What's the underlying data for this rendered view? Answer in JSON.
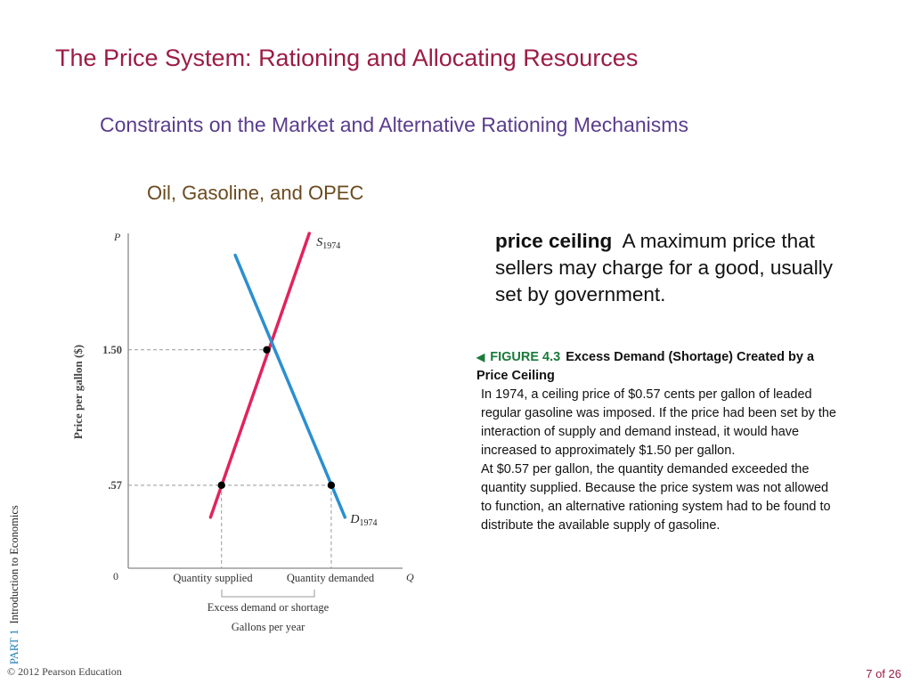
{
  "slide": {
    "title": "The Price System: Rationing and Allocating Resources",
    "subtitle": "Constraints on the Market and Alternative Rationing Mechanisms",
    "section": "Oil, Gasoline, and OPEC",
    "definition": {
      "term": "price ceiling",
      "text": "A maximum price that sellers may charge for a good, usually set by government."
    },
    "figure": {
      "label": "FIGURE 4.3",
      "title": "Excess Demand (Shortage) Created by a Price Ceiling",
      "paragraph1": "In 1974, a ceiling price of $0.57 cents per gallon of leaded regular gasoline was imposed. If the price had been set by the interaction of supply and demand instead, it would have increased to approximately $1.50 per gallon.",
      "paragraph2": "At $0.57 per gallon, the quantity demanded exceeded the quantity supplied. Because the price system was not allowed to function, an alternative rationing system had to be found to distribute the available supply of gasoline."
    },
    "side_label": {
      "part": "PART 1",
      "text": "Introduction to Economics"
    },
    "footer": {
      "copyright": "© 2012 Pearson Education",
      "page": "7 of 26"
    }
  },
  "chart_data": {
    "type": "line",
    "y_axis_label": "Price per gallon ($)",
    "y_axis_symbol": "P",
    "x_axis_symbol": "Q",
    "origin_label": "0",
    "y_ticks": [
      {
        "value": 0.57,
        "label": ".57"
      },
      {
        "value": 1.5,
        "label": "1.50"
      }
    ],
    "x_labels": {
      "quantity_supplied": "Quantity supplied",
      "quantity_demanded": "Quantity demanded",
      "shortage": "Excess demand or shortage",
      "units": "Gallons per year"
    },
    "ylim": [
      0,
      2.3
    ],
    "xlim": [
      0,
      10
    ],
    "series": [
      {
        "name": "S1974",
        "label_main": "S",
        "label_sub": "1974",
        "color": "#e0245e",
        "points": [
          [
            3.0,
            0.35
          ],
          [
            6.6,
            2.3
          ]
        ]
      },
      {
        "name": "D1974",
        "label_main": "D",
        "label_sub": "1974",
        "color": "#2b8fd0",
        "points": [
          [
            3.9,
            2.15
          ],
          [
            7.9,
            0.35
          ]
        ]
      }
    ],
    "equilibrium": {
      "x": 5.05,
      "y": 1.5
    },
    "ceiling": {
      "price": 0.57,
      "quantity_supplied": 3.4,
      "quantity_demanded": 7.4
    },
    "colors": {
      "axis": "#888888",
      "guide": "#999999",
      "point": "#000000"
    }
  }
}
